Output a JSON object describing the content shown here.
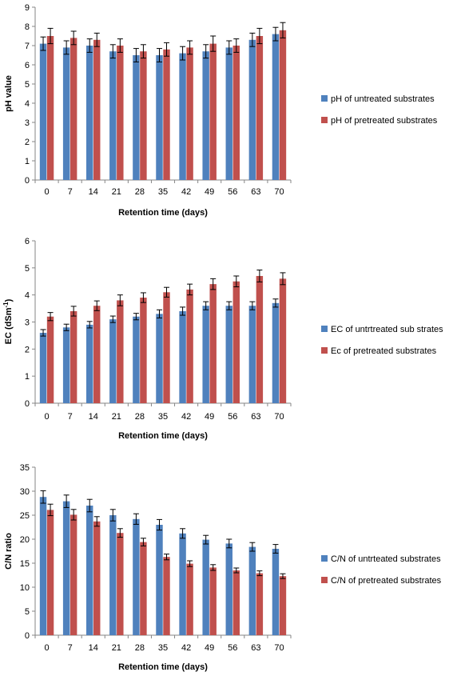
{
  "chart_data": [
    {
      "type": "bar",
      "categories": [
        "0",
        "7",
        "14",
        "21",
        "28",
        "35",
        "42",
        "49",
        "56",
        "63",
        "70"
      ],
      "xlabel": "Retention time (days)",
      "ylabel": "pH value",
      "ylim": [
        0,
        9
      ],
      "yticks": [
        0,
        1,
        2,
        3,
        4,
        5,
        6,
        7,
        8,
        9
      ],
      "error_bars": true,
      "grid": false,
      "legend_position": "right",
      "series": [
        {
          "name": "pH of untreated substrates",
          "color": "#4f81bd",
          "values": [
            7.1,
            6.9,
            7.0,
            6.7,
            6.5,
            6.5,
            6.6,
            6.7,
            6.9,
            7.3,
            7.6
          ],
          "errors": [
            0.35,
            0.35,
            0.35,
            0.35,
            0.35,
            0.35,
            0.35,
            0.35,
            0.35,
            0.35,
            0.35
          ]
        },
        {
          "name": "pH of pretreated substrates",
          "color": "#c0504d",
          "values": [
            7.5,
            7.4,
            7.3,
            7.0,
            6.7,
            6.8,
            6.9,
            7.1,
            7.0,
            7.5,
            7.8
          ],
          "errors": [
            0.4,
            0.35,
            0.35,
            0.35,
            0.35,
            0.35,
            0.35,
            0.4,
            0.35,
            0.4,
            0.4
          ]
        }
      ]
    },
    {
      "type": "bar",
      "categories": [
        "0",
        "7",
        "14",
        "21",
        "28",
        "35",
        "42",
        "49",
        "56",
        "63",
        "70"
      ],
      "xlabel": "Retention time (days)",
      "ylabel": "EC (dSm",
      "ylabel_sup": "-1",
      "ylabel_end": ")",
      "ylim": [
        0,
        6
      ],
      "yticks": [
        0,
        1,
        2,
        3,
        4,
        5,
        6
      ],
      "error_bars": true,
      "grid": false,
      "legend_position": "right",
      "series": [
        {
          "name": "EC of untrtreated sub strates",
          "color": "#4f81bd",
          "values": [
            2.6,
            2.8,
            2.9,
            3.1,
            3.2,
            3.3,
            3.4,
            3.6,
            3.6,
            3.6,
            3.7
          ],
          "errors": [
            0.12,
            0.12,
            0.12,
            0.12,
            0.12,
            0.15,
            0.15,
            0.15,
            0.15,
            0.15,
            0.15
          ]
        },
        {
          "name": "Ec of pretreated substrates",
          "color": "#c0504d",
          "values": [
            3.2,
            3.4,
            3.6,
            3.8,
            3.9,
            4.1,
            4.2,
            4.4,
            4.5,
            4.7,
            4.6
          ],
          "errors": [
            0.15,
            0.18,
            0.18,
            0.2,
            0.18,
            0.18,
            0.2,
            0.2,
            0.2,
            0.22,
            0.22
          ]
        }
      ]
    },
    {
      "type": "bar",
      "categories": [
        "0",
        "7",
        "14",
        "21",
        "28",
        "35",
        "42",
        "49",
        "56",
        "63",
        "70"
      ],
      "xlabel": "Retention time (days)",
      "ylabel": "C/N ratio",
      "ylim": [
        0,
        35
      ],
      "yticks": [
        0,
        5,
        10,
        15,
        20,
        25,
        30,
        35
      ],
      "error_bars": true,
      "grid": false,
      "legend_position": "right",
      "series": [
        {
          "name": "C/N of untrteated substrates",
          "color": "#4f81bd",
          "values": [
            28.8,
            27.9,
            27.0,
            25.0,
            24.2,
            23.0,
            21.2,
            19.9,
            19.1,
            18.4,
            18.0
          ],
          "errors": [
            1.3,
            1.3,
            1.3,
            1.2,
            1.1,
            1.1,
            1.0,
            0.9,
            0.9,
            0.9,
            0.9
          ]
        },
        {
          "name": "C/N of pretreated substrates",
          "color": "#c0504d",
          "values": [
            26.1,
            25.1,
            23.7,
            21.3,
            19.4,
            16.3,
            14.9,
            14.1,
            13.5,
            12.9,
            12.3
          ],
          "errors": [
            1.2,
            1.1,
            1.0,
            0.9,
            0.8,
            0.6,
            0.6,
            0.6,
            0.5,
            0.5,
            0.5
          ]
        }
      ]
    }
  ]
}
